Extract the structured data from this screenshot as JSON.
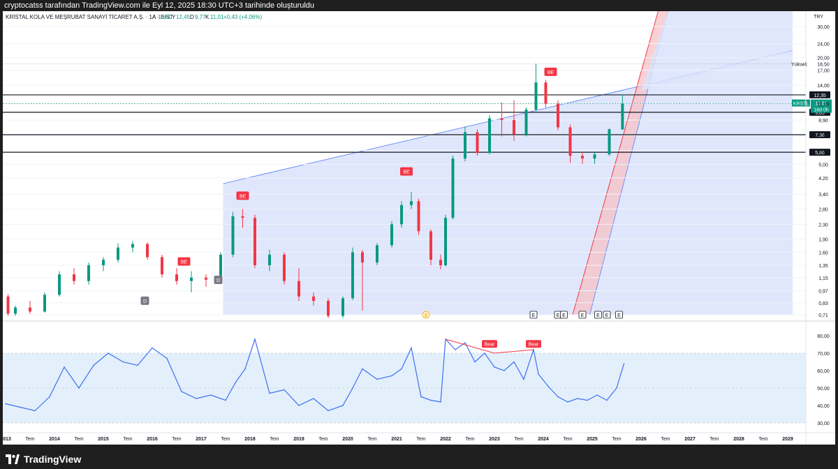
{
  "topbar": {
    "text": "cryptocatss tarafından TradingView.com ile Eyl 12, 2025 18:30 UTC+3 tarihinde oluşturuldu"
  },
  "footer": {
    "brand": "TradingView"
  },
  "colors": {
    "up": "#089981",
    "down": "#f23645",
    "channel_fill": "#dbe3fb",
    "channel_line": "#6f8ff5",
    "red_band": "#f7c2c6",
    "rsi_line": "#3d6ef5",
    "rsi_band": "#e3f0fb"
  },
  "chart_data": [
    {
      "type": "candlestick",
      "legend": {
        "name": "KRİSTAL KOLA VE MEŞRUBAT SANAYİ TİCARET A.Ş. · 1A · BIST",
        "o_label": "A",
        "o": "10,60",
        "h_label": "Y",
        "h": "12,45",
        "l_label": "D",
        "l": "9,77",
        "c_label": "K",
        "c": "11,01",
        "change": "+0,43 (+4,06%)"
      },
      "currency": "TRY",
      "y_scale": "log",
      "y_ticks": [
        "30,00",
        "24,00",
        "20,00",
        "17,00",
        "14,00",
        "11,00",
        "8,90",
        "7,30",
        "6,00",
        "5,00",
        "4,20",
        "3,40",
        "2,80",
        "2,30",
        "1,90",
        "1,60",
        "1,35",
        "1,15",
        "0,97",
        "0,83",
        "0,71"
      ],
      "y_tick_values": [
        30,
        24,
        20,
        17,
        14,
        11,
        8.9,
        7.3,
        6,
        5,
        4.2,
        3.4,
        2.8,
        2.3,
        1.9,
        1.6,
        1.35,
        1.15,
        0.97,
        0.83,
        0.71
      ],
      "x_labels": [
        "2013",
        "Tem",
        "2014",
        "Tem",
        "2015",
        "Tem",
        "2016",
        "Tem",
        "2017",
        "Tem",
        "2018",
        "Tem",
        "2019",
        "Tem",
        "2020",
        "Tem",
        "2021",
        "Tem",
        "2022",
        "Tem",
        "2023",
        "Tem",
        "2024",
        "Tem",
        "2025",
        "Tem",
        "2026",
        "Tem",
        "2027",
        "Tem",
        "2028",
        "Tem",
        "2029"
      ],
      "horizontal_levels": [
        "12,35",
        "9,85",
        "7,36",
        "5,86"
      ],
      "horizontal_level_values": [
        12.35,
        9.85,
        7.36,
        5.86
      ],
      "price_marker": {
        "symbol": "KRSTL",
        "value": "11,01",
        "countdown": "18d 0h"
      },
      "high_marker": {
        "label": "Yüksek",
        "value": "18,50"
      },
      "annotations": {
        "be": [
          "BE",
          "BE",
          "BE",
          "BE"
        ],
        "d": [
          "D",
          "D"
        ],
        "events": [
          "E",
          "E",
          "E",
          "E",
          "E",
          "E",
          "E"
        ],
        "dividend": "$"
      },
      "candles": [
        {
          "t": 2013.05,
          "o": 0.9,
          "h": 0.93,
          "l": 0.7,
          "c": 0.72
        },
        {
          "t": 2013.2,
          "o": 0.72,
          "h": 0.8,
          "l": 0.7,
          "c": 0.78
        },
        {
          "t": 2013.5,
          "o": 0.78,
          "h": 0.85,
          "l": 0.72,
          "c": 0.74
        },
        {
          "t": 2013.8,
          "o": 0.74,
          "h": 0.95,
          "l": 0.73,
          "c": 0.92
        },
        {
          "t": 2014.1,
          "o": 0.92,
          "h": 1.25,
          "l": 0.9,
          "c": 1.2
        },
        {
          "t": 2014.4,
          "o": 1.2,
          "h": 1.3,
          "l": 1.05,
          "c": 1.1
        },
        {
          "t": 2014.7,
          "o": 1.1,
          "h": 1.4,
          "l": 1.05,
          "c": 1.35
        },
        {
          "t": 2015.0,
          "o": 1.35,
          "h": 1.5,
          "l": 1.25,
          "c": 1.45
        },
        {
          "t": 2015.3,
          "o": 1.45,
          "h": 1.8,
          "l": 1.4,
          "c": 1.7
        },
        {
          "t": 2015.6,
          "o": 1.7,
          "h": 1.85,
          "l": 1.6,
          "c": 1.78
        },
        {
          "t": 2015.9,
          "o": 1.78,
          "h": 1.82,
          "l": 1.45,
          "c": 1.5
        },
        {
          "t": 2016.2,
          "o": 1.5,
          "h": 1.55,
          "l": 1.15,
          "c": 1.2
        },
        {
          "t": 2016.5,
          "o": 1.2,
          "h": 1.3,
          "l": 1.05,
          "c": 1.1
        },
        {
          "t": 2016.8,
          "o": 1.1,
          "h": 1.25,
          "l": 0.95,
          "c": 1.15
        },
        {
          "t": 2017.1,
          "o": 1.15,
          "h": 1.2,
          "l": 1.02,
          "c": 1.12
        },
        {
          "t": 2017.4,
          "o": 1.12,
          "h": 1.6,
          "l": 1.1,
          "c": 1.55
        },
        {
          "t": 2017.65,
          "o": 1.55,
          "h": 2.7,
          "l": 1.5,
          "c": 2.55
        },
        {
          "t": 2017.85,
          "o": 2.55,
          "h": 2.8,
          "l": 2.2,
          "c": 2.5
        },
        {
          "t": 2018.1,
          "o": 2.5,
          "h": 2.6,
          "l": 1.3,
          "c": 1.35
        },
        {
          "t": 2018.4,
          "o": 1.35,
          "h": 1.65,
          "l": 1.25,
          "c": 1.55
        },
        {
          "t": 2018.7,
          "o": 1.55,
          "h": 1.6,
          "l": 1.05,
          "c": 1.1
        },
        {
          "t": 2019.0,
          "o": 1.1,
          "h": 1.3,
          "l": 0.85,
          "c": 0.9
        },
        {
          "t": 2019.3,
          "o": 0.9,
          "h": 0.95,
          "l": 0.8,
          "c": 0.85
        },
        {
          "t": 2019.6,
          "o": 0.85,
          "h": 0.88,
          "l": 0.68,
          "c": 0.7
        },
        {
          "t": 2019.9,
          "o": 0.7,
          "h": 0.9,
          "l": 0.68,
          "c": 0.88
        },
        {
          "t": 2020.1,
          "o": 0.88,
          "h": 1.7,
          "l": 0.86,
          "c": 1.6
        },
        {
          "t": 2020.3,
          "o": 1.6,
          "h": 1.65,
          "l": 0.75,
          "c": 1.4
        },
        {
          "t": 2020.6,
          "o": 1.4,
          "h": 1.8,
          "l": 1.35,
          "c": 1.75
        },
        {
          "t": 2020.9,
          "o": 1.75,
          "h": 2.4,
          "l": 1.7,
          "c": 2.3
        },
        {
          "t": 2021.1,
          "o": 2.3,
          "h": 3.1,
          "l": 2.2,
          "c": 2.95
        },
        {
          "t": 2021.3,
          "o": 2.95,
          "h": 3.5,
          "l": 2.8,
          "c": 3.1
        },
        {
          "t": 2021.45,
          "o": 3.1,
          "h": 3.2,
          "l": 2.0,
          "c": 2.1
        },
        {
          "t": 2021.7,
          "o": 2.1,
          "h": 2.15,
          "l": 1.35,
          "c": 1.45
        },
        {
          "t": 2021.9,
          "o": 1.45,
          "h": 1.55,
          "l": 1.28,
          "c": 1.35
        },
        {
          "t": 2022.0,
          "o": 1.35,
          "h": 2.6,
          "l": 1.33,
          "c": 2.5
        },
        {
          "t": 2022.15,
          "o": 2.5,
          "h": 5.6,
          "l": 2.45,
          "c": 5.4
        },
        {
          "t": 2022.4,
          "o": 5.4,
          "h": 8.2,
          "l": 5.2,
          "c": 7.6
        },
        {
          "t": 2022.65,
          "o": 7.6,
          "h": 7.9,
          "l": 5.6,
          "c": 5.8
        },
        {
          "t": 2022.9,
          "o": 5.8,
          "h": 9.5,
          "l": 5.7,
          "c": 9.1
        },
        {
          "t": 2023.15,
          "o": 9.1,
          "h": 11.2,
          "l": 7.2,
          "c": 8.9
        },
        {
          "t": 2023.4,
          "o": 8.9,
          "h": 11.5,
          "l": 6.8,
          "c": 7.4
        },
        {
          "t": 2023.65,
          "o": 7.4,
          "h": 10.5,
          "l": 7.2,
          "c": 10.2
        },
        {
          "t": 2023.85,
          "o": 10.2,
          "h": 18.5,
          "l": 10.0,
          "c": 14.5
        },
        {
          "t": 2024.05,
          "o": 14.5,
          "h": 15.0,
          "l": 10.5,
          "c": 11.0
        },
        {
          "t": 2024.3,
          "o": 11.0,
          "h": 11.5,
          "l": 7.8,
          "c": 8.1
        },
        {
          "t": 2024.55,
          "o": 8.1,
          "h": 8.4,
          "l": 5.1,
          "c": 5.6
        },
        {
          "t": 2024.8,
          "o": 5.6,
          "h": 5.9,
          "l": 5.05,
          "c": 5.4
        },
        {
          "t": 2025.05,
          "o": 5.4,
          "h": 5.85,
          "l": 5.05,
          "c": 5.7
        },
        {
          "t": 2025.35,
          "o": 5.7,
          "h": 8.0,
          "l": 5.6,
          "c": 7.9
        },
        {
          "t": 2025.62,
          "o": 7.9,
          "h": 12.45,
          "l": 7.8,
          "c": 11.01
        }
      ]
    },
    {
      "type": "line",
      "name": "RSI",
      "y_ticks": [
        "80,00",
        "70,00",
        "60,00",
        "50,00",
        "40,00",
        "30,00"
      ],
      "y_tick_values": [
        80,
        70,
        60,
        50,
        40,
        30
      ],
      "band": [
        30,
        70
      ],
      "midline": 50,
      "annotations": [
        "Bear",
        "Bear"
      ],
      "x": [
        2013.0,
        2013.3,
        2013.6,
        2013.9,
        2014.2,
        2014.5,
        2014.8,
        2015.1,
        2015.4,
        2015.7,
        2016.0,
        2016.3,
        2016.6,
        2016.9,
        2017.2,
        2017.5,
        2017.7,
        2017.9,
        2018.1,
        2018.4,
        2018.7,
        2019.0,
        2019.3,
        2019.6,
        2019.9,
        2020.1,
        2020.3,
        2020.6,
        2020.9,
        2021.1,
        2021.3,
        2021.5,
        2021.7,
        2021.9,
        2022.0,
        2022.2,
        2022.4,
        2022.6,
        2022.8,
        2023.0,
        2023.2,
        2023.4,
        2023.6,
        2023.8,
        2023.9,
        2024.1,
        2024.3,
        2024.5,
        2024.7,
        2024.9,
        2025.1,
        2025.3,
        2025.5,
        2025.65
      ],
      "y": [
        41,
        39,
        37,
        45,
        62,
        50,
        63,
        70,
        65,
        63,
        73,
        67,
        48,
        44,
        46,
        43,
        53,
        61,
        78,
        47,
        49,
        40,
        44,
        37,
        40,
        50,
        61,
        55,
        57,
        61,
        73,
        45,
        43,
        42,
        78,
        72,
        76,
        65,
        70,
        62,
        60,
        65,
        55,
        72,
        58,
        51,
        45,
        42,
        44,
        43,
        46,
        43,
        50,
        64
      ]
    }
  ]
}
